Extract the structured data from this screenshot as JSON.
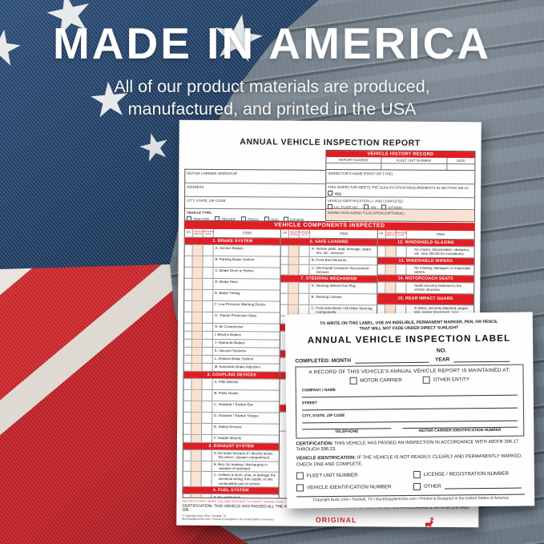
{
  "hero": {
    "title": "MADE IN AMERICA",
    "subtitle_line1": "All of our product materials are produced,",
    "subtitle_line2": "manufactured, and printed in the USA"
  },
  "colors": {
    "accent_red": "#E01E23",
    "peach": "#F9E2D2",
    "flag_navy": "#173252",
    "flag_red": "#C8272B"
  },
  "report": {
    "title": "ANNUAL VEHICLE INSPECTION REPORT",
    "history": {
      "title": "VEHICLE HISTORY RECORD",
      "columns": [
        "REPORT NUMBER",
        "FLEET UNIT NUMBER",
        "DATE"
      ]
    },
    "carrier_fields": [
      "MOTOR CARRIER OPERATOR",
      "ADDRESS",
      "CITY, STATE, ZIP CODE"
    ],
    "vehicle_type": {
      "label": "VEHICLE TYPE:",
      "options": [
        "TRACTOR",
        "TRAILER",
        "TRUCK",
        "BUS",
        "(OTHER)"
      ]
    },
    "inspector": {
      "name_label": "INSPECTOR'S NAME (PRINT OR TYPE)",
      "qualification": "THIS INSPECTOR MEETS THE QUALIFICATION REQUIREMENTS IN SECTION 396.19.",
      "qualification_option": "YES",
      "identification_label": "VEHICLE IDENTIFICATION (✓ AND COMPLETE):",
      "identification_options": [
        "LIC. PLATE NO.",
        "VIN",
        "(OTHER)"
      ],
      "agency_label": "INSPECTION AGENCY/LOCATION (OPTIONAL)"
    },
    "components": {
      "banner": "VEHICLE COMPONENTS INSPECTED",
      "column_headers": [
        "OK",
        "NEEDS REPAIR",
        "REPAIRED DATE",
        "ITEM"
      ],
      "groups": [
        {
          "rows": [
            {
              "t": "sec",
              "label": "1. BRAKE SYSTEM"
            },
            {
              "t": "item",
              "label": "A.  Service Brakes",
              "pad": 1
            },
            {
              "t": "item",
              "label": "B.  Parking Brake System",
              "pad": 1
            },
            {
              "t": "item",
              "label": "C.  Brake Drum or Rotors",
              "pad": 1
            },
            {
              "t": "item",
              "label": "D.  Brake Hose",
              "pad": 1
            },
            {
              "t": "item",
              "label": "E.  Brake Tubing",
              "pad": 1
            },
            {
              "t": "item",
              "label": "F.  Low Pressure Warning Device",
              "pad": 1
            },
            {
              "t": "item",
              "label": "G.  Tractor Protection Valve",
              "pad": 1
            },
            {
              "t": "item",
              "label": "H.  Air Compressor"
            },
            {
              "t": "item",
              "label": "I.  Electric Brakes"
            },
            {
              "t": "item",
              "label": "J.  Hydraulic Brakes"
            },
            {
              "t": "item",
              "label": "K.  Vacuum Systems"
            },
            {
              "t": "item",
              "label": "L.  Antilock Brake System"
            },
            {
              "t": "item",
              "label": "M.  Automatic Brake Adjusters"
            },
            {
              "t": "sec",
              "label": "2. COUPLING DEVICES"
            },
            {
              "t": "item",
              "label": "A.  Fifth Wheels",
              "pad": 1
            },
            {
              "t": "item",
              "label": "B.  Pintle Hooks",
              "pad": 1
            },
            {
              "t": "item",
              "label": "C.  Drawbar / Towbar Eye",
              "pad": 1
            },
            {
              "t": "item",
              "label": "D.  Drawbar / Towbar Tongue",
              "pad": 1
            },
            {
              "t": "item",
              "label": "E.  Safety Devices",
              "pad": 1
            },
            {
              "t": "item",
              "label": "F.  Saddle-Mounts"
            },
            {
              "t": "sec",
              "label": "3. EXHAUST SYSTEM"
            },
            {
              "t": "item",
              "label": "A.  No leaks forward of / directly below the driver / sleeper compartment."
            },
            {
              "t": "item",
              "label": "B.  Bus: No leaking / discharging in violation of standard."
            },
            {
              "t": "item",
              "label": "C.  Unlikely to burn, char, or damage the electrical wiring, fuel supply, or any combustible part of vehicle."
            },
            {
              "t": "sec",
              "label": "4. FUEL SYSTEM"
            },
            {
              "t": "item",
              "label": "A.  No visible leak.",
              "pad": 1
            },
            {
              "t": "item",
              "label": "B.  Fuel Tank Filler Cap"
            },
            {
              "t": "item",
              "label": "C.  Fuel tank securely attached."
            },
            {
              "t": "sec",
              "label": "5. LIGHTING DEVICES"
            },
            {
              "t": "item",
              "label": "All required lights / reflectors operable.",
              "noletter": true
            }
          ]
        },
        {
          "rows": [
            {
              "t": "sec",
              "label": "6. SAFE LOADING"
            },
            {
              "t": "item",
              "label": "A.  Vehicle parts, load, dunnage, spare tire, etc., secured."
            },
            {
              "t": "item",
              "label": "B.  Front End Structure"
            },
            {
              "t": "item",
              "label": "C.  Intermodal Container Securement Devices"
            },
            {
              "t": "sec",
              "label": "7. STEERING MECHANISM"
            },
            {
              "t": "item",
              "label": "A.  Steering Wheel Free Play",
              "pad": 1
            },
            {
              "t": "item",
              "label": "B.  Steering Column",
              "pad": 1
            },
            {
              "t": "item",
              "label": "C.  Front Axle Beam / All Other Steering Components"
            },
            {
              "t": "item",
              "label": "D.  Steering Gear Box"
            },
            {
              "t": "sec",
              "label": ""
            },
            {
              "t": "item",
              "label": "",
              "pad": 3
            },
            {
              "t": "sec",
              "label": ""
            },
            {
              "t": "item",
              "label": "",
              "pad": 2
            },
            {
              "t": "sec",
              "label": ""
            },
            {
              "t": "item",
              "label": "",
              "pad": 4
            },
            {
              "t": "sec",
              "label": ""
            },
            {
              "t": "item",
              "label": "",
              "pad": 3
            }
          ]
        },
        {
          "rows": [
            {
              "t": "sec",
              "label": "12. WINDSHIELD GLAZING"
            },
            {
              "t": "item",
              "label": "No cracks, discoloration, obstacles, etc. (see 393.60 for exceptions).",
              "noletter": true
            },
            {
              "t": "sec",
              "label": "13. WINDSHIELD WIPERS"
            },
            {
              "t": "item",
              "label": "No missing, damaged, or inoperable wipers.",
              "noletter": true
            },
            {
              "t": "sec",
              "label": "14. MOTORCOACH SEATS"
            },
            {
              "t": "item",
              "label": "Seats securely fastened to the vehicle structure.",
              "noletter": true
            },
            {
              "t": "sec",
              "label": "15. REAR IMPACT GUARD",
              "tall": true
            },
            {
              "t": "item",
              "label": "In place, securely attached, proper size, proper placement, (see 393.86).",
              "noletter": true
            },
            {
              "t": "sec",
              "label": "16. OTHER"
            },
            {
              "t": "item",
              "label": "",
              "pad": 4
            }
          ]
        }
      ]
    },
    "footer": {
      "instructions": "INSTRUCTIONS: MARK COLUMN ENTRIES TO VERIFY INSPECTION  ✓",
      "certification": "CERTIFICATION: THIS VEHICLE HAS PASSED ALL THE INSPECTION ITEMS FOR THE ANNUAL VEHICLE INSPECTION IN ACCORDANCE WITH 49 CFR PART 396.",
      "copyright_line1": "© Copyright Buck USA • Tomball, TX",
      "copyright_line2": "BuckSuppliesUSA.com • Printed & Designed in the United States of America",
      "original": "ORIGINAL"
    }
  },
  "label": {
    "notice_line1": "TO WRITE ON THIS LABEL, USE AN INDELIBLE, PERMANENT MARKER, PEN, OR PENCIL",
    "notice_line2": "THAT WILL NOT FADE UNDER DIRECT SUNLIGHT",
    "title": "ANNUAL VEHICLE INSPECTION LABEL",
    "no_label": "NO.",
    "completed_label": "COMPLETED: MONTH",
    "year_label": "YEAR",
    "record_box": {
      "heading": "A RECORD OF THIS VEHICLE'S ANNUAL VEHICLE REPORT IS MAINTAINED AT:",
      "checkboxes": [
        "MOTOR CARRIER",
        "OTHER ENTITY"
      ],
      "fields": [
        "COMPANY / NAME",
        "STREET",
        "CITY, STATE, ZIP CODE"
      ],
      "bottom_fields": [
        "TELEPHONE",
        "MOTOR CARRIER IDENTIFICATION NUMBER"
      ]
    },
    "certification_lead": "CERTIFICATION:",
    "certification_rest": " THIS VEHICLE HAS PASSED AN INSPECTION IN ACCORDANCE WITH 49CFR 396.17 THROUGH 396.23.",
    "vehicle_id_lead": "VEHICLE IDENTIFICATION:",
    "vehicle_id_rest": " IF THE VEHICLE IS NOT READILY, CLEARLY AND PERMANENTLY MARKED, CHECK ONE AND COMPLETE.",
    "id_checkboxes": [
      "FLEET UNIT NUMBER",
      "LICENSE / REGISTRATION NUMBER",
      "VEHICLE IDENTIFICATION NUMBER",
      "OTHER"
    ],
    "copyright": "Copyright Buck USA • Tomball, TX • BuckSuppliesUSA.com • Printed & Designed in the United States of America"
  }
}
